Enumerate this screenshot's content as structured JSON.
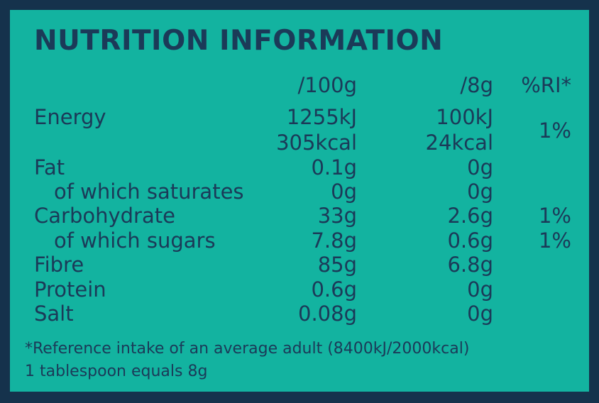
{
  "title": "NUTRITION INFORMATION",
  "columns": [
    "/100g",
    "/8g",
    "%RI*"
  ],
  "rows": [
    {
      "label": "Energy",
      "per_100g": [
        "1255kJ",
        "305kcal"
      ],
      "per_8g": [
        "100kJ",
        "24kcal"
      ],
      "ri": "1%"
    },
    {
      "label": "Fat",
      "per_100g": "0.1g",
      "per_8g": "0g"
    },
    {
      "label": "of which saturates",
      "per_100g": "0g",
      "per_8g": "0g"
    },
    {
      "label": "Carbohydrate",
      "per_100g": "33g",
      "per_8g": "2.6g",
      "ri": "1%"
    },
    {
      "label": "of which sugars",
      "per_100g": "7.8g",
      "per_8g": "0.6g",
      "ri": "1%"
    },
    {
      "label": "Fibre",
      "per_100g": "85g",
      "per_8g": "6.8g"
    },
    {
      "label": "Protein",
      "per_100g": "0.6g",
      "per_8g": "0g"
    },
    {
      "label": "Salt",
      "per_100g": "0.08g",
      "per_8g": "0g"
    }
  ],
  "footnotes": [
    "*Reference intake of an average adult (8400kJ/2000kcal)",
    "1 tablespoon equals 8g"
  ]
}
